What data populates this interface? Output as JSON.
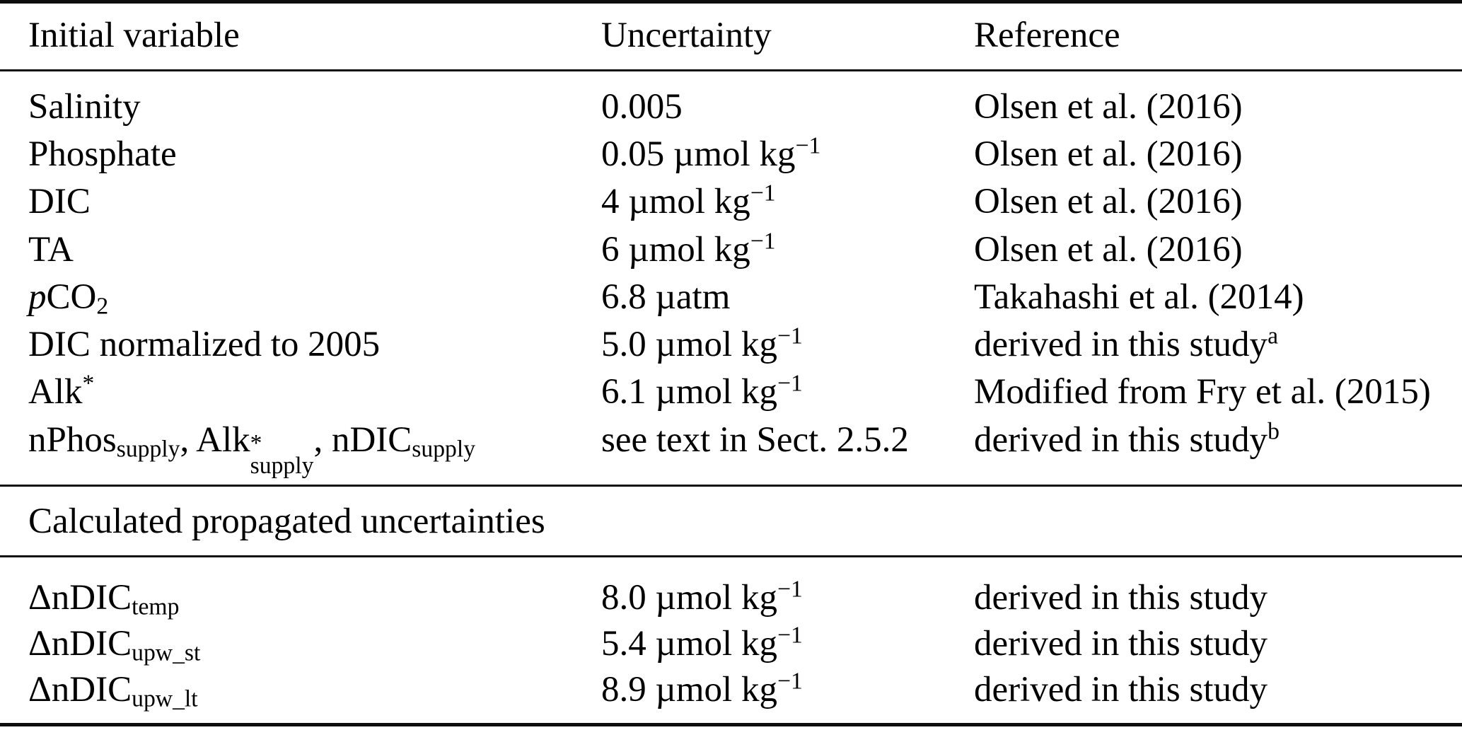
{
  "page": {
    "background_color": "#ffffff",
    "text_color": "#000000",
    "rule_color": "#0d0d0d"
  },
  "table": {
    "columns": [
      "Initial variable",
      "Uncertainty",
      "Reference"
    ],
    "initial_rows": [
      {
        "variable": [
          {
            "t": "Salinity"
          }
        ],
        "uncertainty": [
          {
            "t": "0.005"
          }
        ],
        "reference": [
          {
            "t": "Olsen et al. (2016)"
          }
        ]
      },
      {
        "variable": [
          {
            "t": "Phosphate"
          }
        ],
        "uncertainty": [
          {
            "t": "0.05 µmol kg"
          },
          {
            "t": "−1",
            "s": "sup"
          }
        ],
        "reference": [
          {
            "t": "Olsen et al. (2016)"
          }
        ]
      },
      {
        "variable": [
          {
            "t": "DIC"
          }
        ],
        "uncertainty": [
          {
            "t": "4 µmol kg"
          },
          {
            "t": "−1",
            "s": "sup"
          }
        ],
        "reference": [
          {
            "t": "Olsen et al. (2016)"
          }
        ]
      },
      {
        "variable": [
          {
            "t": "TA"
          }
        ],
        "uncertainty": [
          {
            "t": "6 µmol kg"
          },
          {
            "t": "−1",
            "s": "sup"
          }
        ],
        "reference": [
          {
            "t": "Olsen et al. (2016)"
          }
        ]
      },
      {
        "variable": [
          {
            "t": "p",
            "s": "i"
          },
          {
            "t": "CO"
          },
          {
            "t": "2",
            "s": "sub"
          }
        ],
        "uncertainty": [
          {
            "t": "6.8 µatm"
          }
        ],
        "reference": [
          {
            "t": "Takahashi et al. (2014)"
          }
        ]
      },
      {
        "variable": [
          {
            "t": "DIC normalized to 2005"
          }
        ],
        "uncertainty": [
          {
            "t": "5.0 µmol kg"
          },
          {
            "t": "−1",
            "s": "sup"
          }
        ],
        "reference": [
          {
            "t": "derived in this study"
          },
          {
            "t": "a",
            "s": "sup"
          }
        ]
      },
      {
        "variable": [
          {
            "t": "Alk"
          },
          {
            "t": "*",
            "s": "sup"
          }
        ],
        "uncertainty": [
          {
            "t": "6.1 µmol kg"
          },
          {
            "t": "−1",
            "s": "sup"
          }
        ],
        "reference": [
          {
            "t": "Modified from Fry et al. (2015)"
          }
        ]
      },
      {
        "variable": [
          {
            "t": "nPhos"
          },
          {
            "t": "supply",
            "s": "sub"
          },
          {
            "t": ", Alk"
          },
          {
            "stack": [
              "*",
              "supply"
            ]
          },
          {
            "t": ", nDIC"
          },
          {
            "t": "supply",
            "s": "sub"
          }
        ],
        "uncertainty": [
          {
            "t": "see text in Sect. 2.5.2"
          }
        ],
        "reference": [
          {
            "t": "derived in this study"
          },
          {
            "t": "b",
            "s": "sup"
          }
        ]
      }
    ],
    "section_header": "Calculated propagated uncertainties",
    "propagated_rows": [
      {
        "variable": [
          {
            "t": "ΔnDIC"
          },
          {
            "t": "temp",
            "s": "sub"
          }
        ],
        "uncertainty": [
          {
            "t": "8.0 µmol kg"
          },
          {
            "t": "−1",
            "s": "sup"
          }
        ],
        "reference": [
          {
            "t": "derived in this study"
          }
        ]
      },
      {
        "variable": [
          {
            "t": "ΔnDIC"
          },
          {
            "t": "upw_st",
            "s": "sub"
          }
        ],
        "uncertainty": [
          {
            "t": "5.4 µmol kg"
          },
          {
            "t": "−1",
            "s": "sup"
          }
        ],
        "reference": [
          {
            "t": "derived in this study"
          }
        ]
      },
      {
        "variable": [
          {
            "t": "ΔnDIC"
          },
          {
            "t": "upw_lt",
            "s": "sub"
          }
        ],
        "uncertainty": [
          {
            "t": "8.9 µmol kg"
          },
          {
            "t": "−1",
            "s": "sup"
          }
        ],
        "reference": [
          {
            "t": "derived in this study"
          }
        ]
      }
    ],
    "footnote_markers": [
      "a",
      "b"
    ]
  }
}
